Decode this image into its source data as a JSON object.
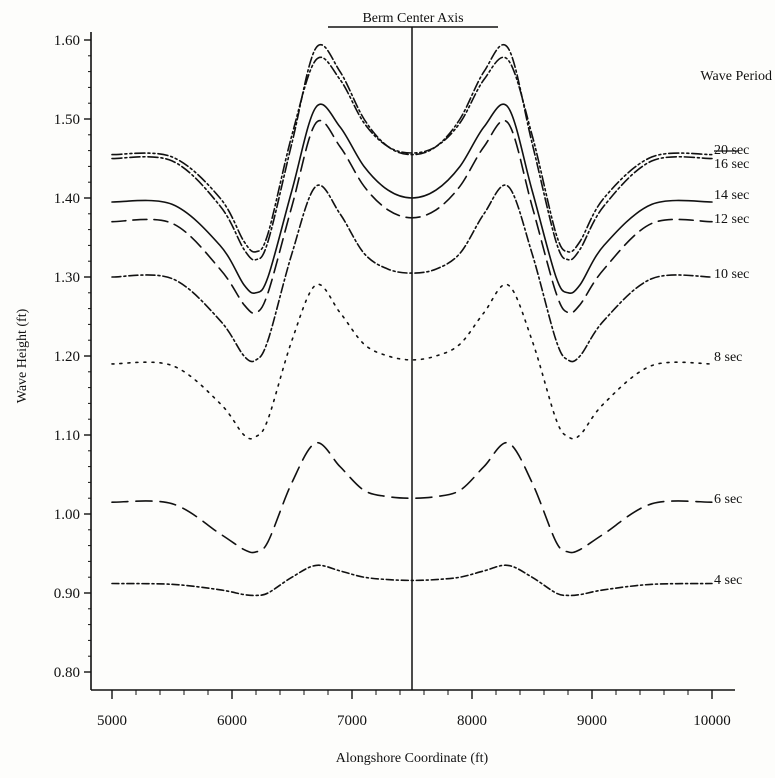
{
  "chart_data": {
    "type": "line",
    "title": "",
    "xlabel": "Alongshore Coordinate (ft)",
    "ylabel": "Wave Height (ft)",
    "xlim": [
      5000,
      10000
    ],
    "ylim": [
      0.8,
      1.6
    ],
    "xticks": [
      "5000",
      "6000",
      "7000",
      "8000",
      "9000",
      "10000"
    ],
    "yticks": [
      "0.80",
      "0.90",
      "1.00",
      "1.10",
      "1.20",
      "1.30",
      "1.40",
      "1.50",
      "1.60"
    ],
    "grid": false,
    "legend_title": "Wave Period",
    "legend_placement": "right",
    "annotations": [
      {
        "text": "Berm Center Axis",
        "x": 7500
      }
    ],
    "x": [
      5000,
      5500,
      5900,
      6100,
      6200,
      6300,
      6500,
      6700,
      6900,
      7100,
      7300,
      7500,
      7700,
      7900,
      8100,
      8300,
      8500,
      8700,
      8800,
      8900,
      9100,
      9500,
      10000
    ],
    "series": [
      {
        "name": "20 sec",
        "dash": "10,3,2,3,2,3",
        "values": [
          1.455,
          1.452,
          1.4,
          1.345,
          1.332,
          1.355,
          1.48,
          1.575,
          1.55,
          1.495,
          1.465,
          1.457,
          1.465,
          1.495,
          1.55,
          1.575,
          1.48,
          1.355,
          1.332,
          1.345,
          1.4,
          1.452,
          1.455
        ]
      },
      {
        "name": "16 sec",
        "dash": "10,3,2,3",
        "values": [
          1.45,
          1.447,
          1.39,
          1.335,
          1.322,
          1.345,
          1.47,
          1.59,
          1.56,
          1.5,
          1.465,
          1.455,
          1.465,
          1.5,
          1.56,
          1.59,
          1.47,
          1.345,
          1.322,
          1.335,
          1.39,
          1.447,
          1.45
        ]
      },
      {
        "name": "14 sec",
        "dash": "",
        "values": [
          1.395,
          1.392,
          1.34,
          1.29,
          1.28,
          1.3,
          1.41,
          1.515,
          1.49,
          1.44,
          1.41,
          1.4,
          1.41,
          1.44,
          1.49,
          1.515,
          1.41,
          1.3,
          1.28,
          1.29,
          1.34,
          1.392,
          1.395
        ]
      },
      {
        "name": "12 sec",
        "dash": "14,7",
        "values": [
          1.37,
          1.368,
          1.31,
          1.265,
          1.255,
          1.28,
          1.39,
          1.495,
          1.465,
          1.415,
          1.385,
          1.375,
          1.385,
          1.415,
          1.465,
          1.495,
          1.39,
          1.28,
          1.255,
          1.265,
          1.31,
          1.368,
          1.37
        ]
      },
      {
        "name": "10 sec",
        "dash": "9,3,2,3",
        "values": [
          1.3,
          1.298,
          1.245,
          1.2,
          1.195,
          1.22,
          1.33,
          1.415,
          1.38,
          1.33,
          1.31,
          1.305,
          1.31,
          1.33,
          1.38,
          1.415,
          1.33,
          1.22,
          1.195,
          1.2,
          1.245,
          1.298,
          1.3
        ]
      },
      {
        "name": "8 sec",
        "dash": "2,6",
        "values": [
          1.19,
          1.188,
          1.14,
          1.1,
          1.098,
          1.12,
          1.22,
          1.29,
          1.255,
          1.215,
          1.2,
          1.195,
          1.2,
          1.215,
          1.255,
          1.29,
          1.22,
          1.12,
          1.098,
          1.1,
          1.14,
          1.188,
          1.19
        ]
      },
      {
        "name": "6 sec",
        "dash": "16,8",
        "values": [
          1.015,
          1.013,
          0.975,
          0.955,
          0.952,
          0.965,
          1.04,
          1.09,
          1.06,
          1.03,
          1.022,
          1.02,
          1.022,
          1.03,
          1.06,
          1.09,
          1.04,
          0.965,
          0.952,
          0.955,
          0.975,
          1.013,
          1.015
        ]
      },
      {
        "name": "4 sec",
        "dash": "7,3,2,3",
        "values": [
          0.912,
          0.911,
          0.904,
          0.898,
          0.897,
          0.9,
          0.92,
          0.935,
          0.928,
          0.92,
          0.917,
          0.916,
          0.917,
          0.92,
          0.928,
          0.935,
          0.92,
          0.9,
          0.897,
          0.898,
          0.904,
          0.911,
          0.912
        ]
      }
    ],
    "legend_positions": [
      1.462,
      1.444,
      1.405,
      1.375,
      1.305,
      1.2,
      1.02,
      0.918
    ]
  },
  "colors": {
    "ink": "#111111",
    "paper": "#fdfdfb"
  }
}
